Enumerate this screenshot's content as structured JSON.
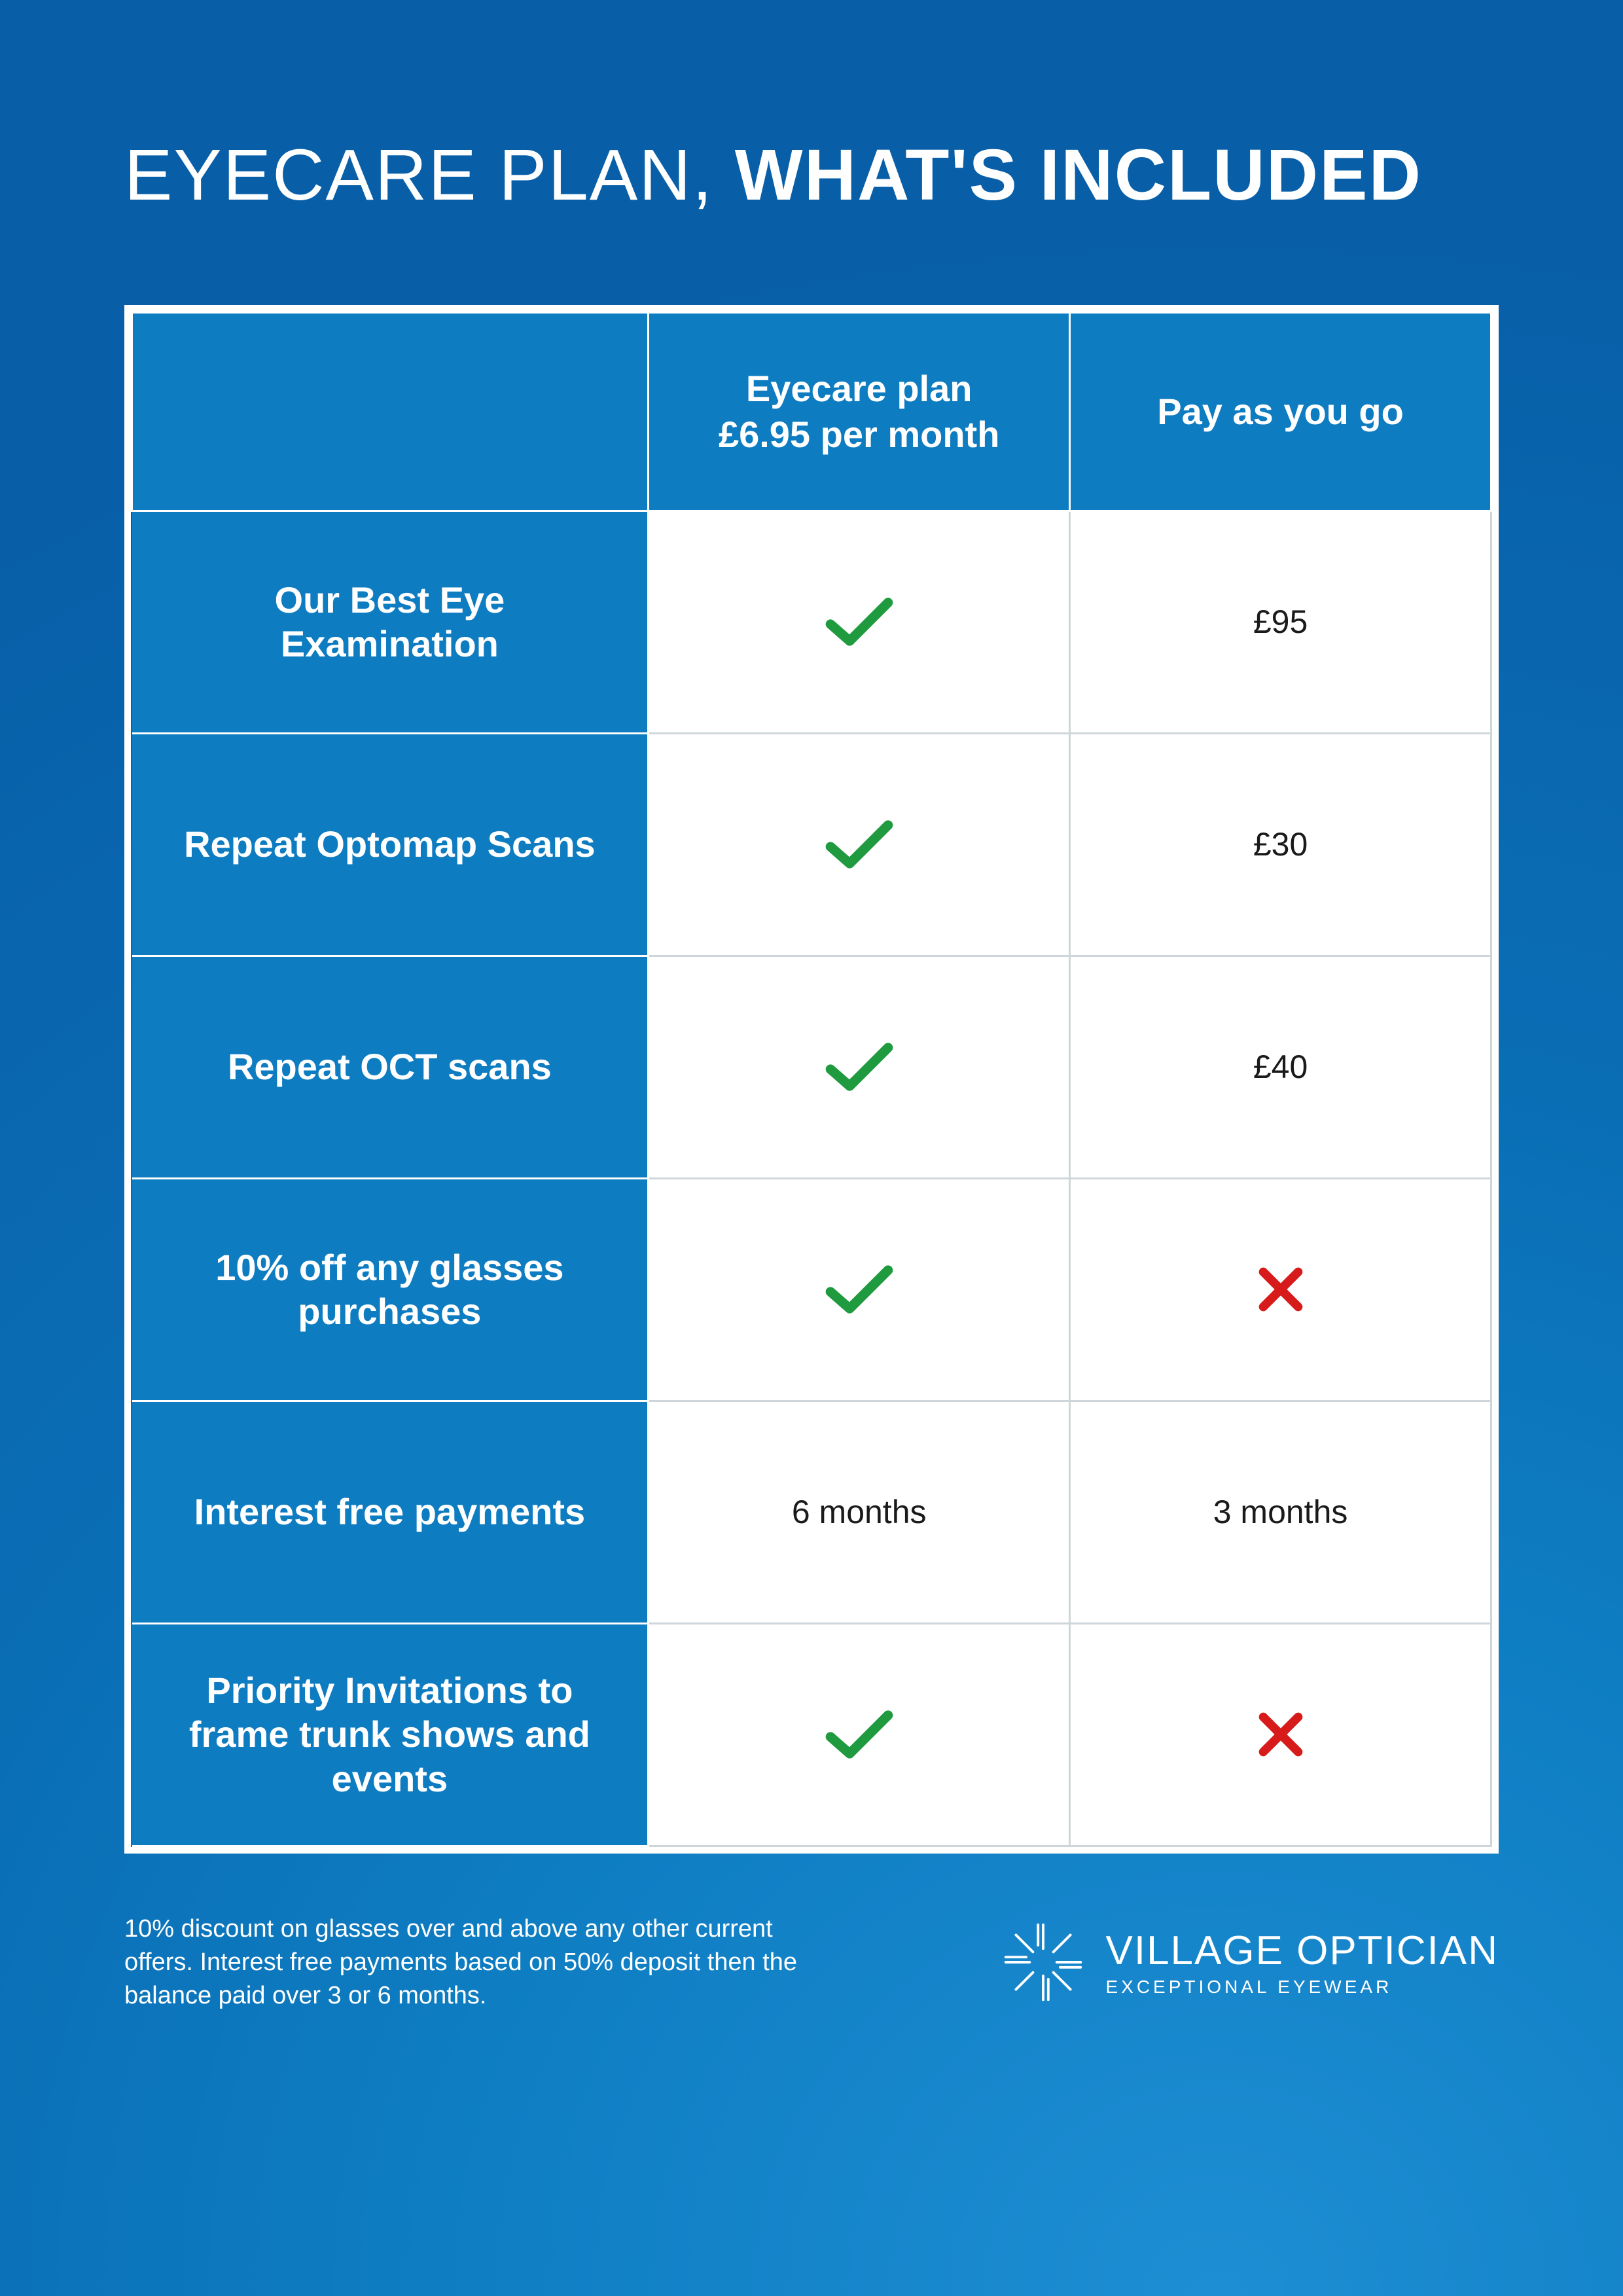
{
  "title": {
    "light": "EYECARE PLAN, ",
    "bold": "WHAT'S INCLUDED"
  },
  "table": {
    "headers": {
      "col1": "",
      "col2_line1": "Eyecare plan",
      "col2_line2": "£6.95 per month",
      "col3": "Pay as you go"
    },
    "rows": [
      {
        "label": "Our Best Eye Examination",
        "plan": {
          "type": "check"
        },
        "payg": {
          "type": "text",
          "value": "£95"
        }
      },
      {
        "label": "Repeat Optomap Scans",
        "plan": {
          "type": "check"
        },
        "payg": {
          "type": "text",
          "value": "£30"
        }
      },
      {
        "label": "Repeat OCT scans",
        "plan": {
          "type": "check"
        },
        "payg": {
          "type": "text",
          "value": "£40"
        }
      },
      {
        "label": "10% off any glasses purchases",
        "plan": {
          "type": "check"
        },
        "payg": {
          "type": "cross"
        }
      },
      {
        "label": "Interest free payments",
        "plan": {
          "type": "text",
          "value": "6 months"
        },
        "payg": {
          "type": "text",
          "value": "3 months"
        }
      },
      {
        "label": "Priority Invitations to frame trunk shows and events",
        "plan": {
          "type": "check"
        },
        "payg": {
          "type": "cross"
        }
      }
    ]
  },
  "disclaimer": "10% discount on glasses over and above any other current offers. Interest free payments based on 50% deposit then the balance paid over 3 or 6 months.",
  "brand": {
    "name": "VILLAGE OPTICIAN",
    "tagline": "EXCEPTIONAL EYEWEAR"
  },
  "colors": {
    "check": "#1f9a3f",
    "cross": "#d71a1a",
    "header_bg": "#0e7cc1",
    "cell_bg": "#ffffff",
    "cell_text": "#1a1a1a",
    "border": "#cfd6da",
    "page_bg_inner": "#1e8ed4",
    "page_bg_outer": "#085fa8"
  }
}
